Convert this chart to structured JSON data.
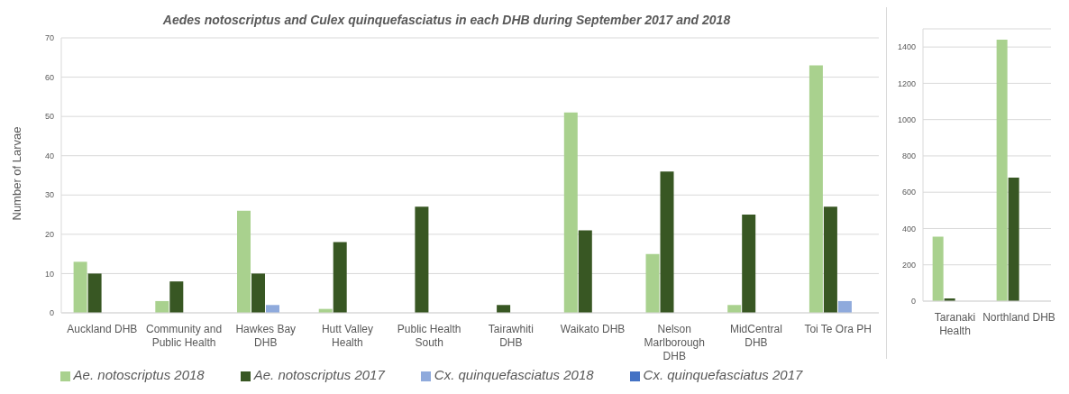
{
  "chart_data": [
    {
      "type": "bar",
      "title": "Aedes notoscriptus and Culex quinquefasciatus in each DHB during September 2017 and 2018",
      "ylabel": "Number of Larvae",
      "categories": [
        "Auckland DHB",
        "Community and Public Health",
        "Hawkes Bay DHB",
        "Hutt Valley Health",
        "Public Health South",
        "Tairawhiti DHB",
        "Waikato DHB",
        "Nelson Marlborough DHB",
        "MidCentral DHB",
        "Toi Te Ora PH"
      ],
      "series": [
        {
          "name": "Ae. notoscriptus 2018",
          "color": "#a9d18e",
          "values": [
            13,
            3,
            26,
            1,
            0,
            0,
            51,
            15,
            2,
            63
          ]
        },
        {
          "name": "Ae. notoscriptus 2017",
          "color": "#385723",
          "values": [
            10,
            8,
            10,
            18,
            27,
            2,
            21,
            36,
            25,
            27
          ]
        },
        {
          "name": "Cx. quinquefasciatus 2018",
          "color": "#8faadc",
          "values": [
            0,
            0,
            2,
            0,
            0,
            0,
            0,
            0,
            0,
            3
          ]
        },
        {
          "name": "Cx. quinquefasciatus 2017",
          "color": "#4472c4",
          "values": [
            0,
            0,
            0,
            0,
            0,
            0,
            0,
            0,
            0,
            0
          ]
        }
      ],
      "ylim": [
        0,
        70
      ],
      "yticks": [
        0,
        10,
        20,
        30,
        40,
        50,
        60,
        70
      ],
      "grid": "y",
      "legend": "bottom"
    },
    {
      "type": "bar",
      "categories": [
        "Taranaki Health",
        "Northland DHB"
      ],
      "series": [
        {
          "color": "#a9d18e",
          "values": [
            355,
            1440
          ]
        },
        {
          "color": "#385723",
          "values": [
            15,
            680
          ]
        },
        {
          "color": "#8faadc",
          "values": [
            0,
            null
          ]
        },
        {
          "color": "#4472c4",
          "values": [
            0,
            null
          ]
        }
      ],
      "ylim": [
        0,
        1500
      ],
      "yticks": [
        0,
        200,
        400,
        600,
        800,
        1000,
        1200,
        1400
      ],
      "grid": "y"
    }
  ]
}
